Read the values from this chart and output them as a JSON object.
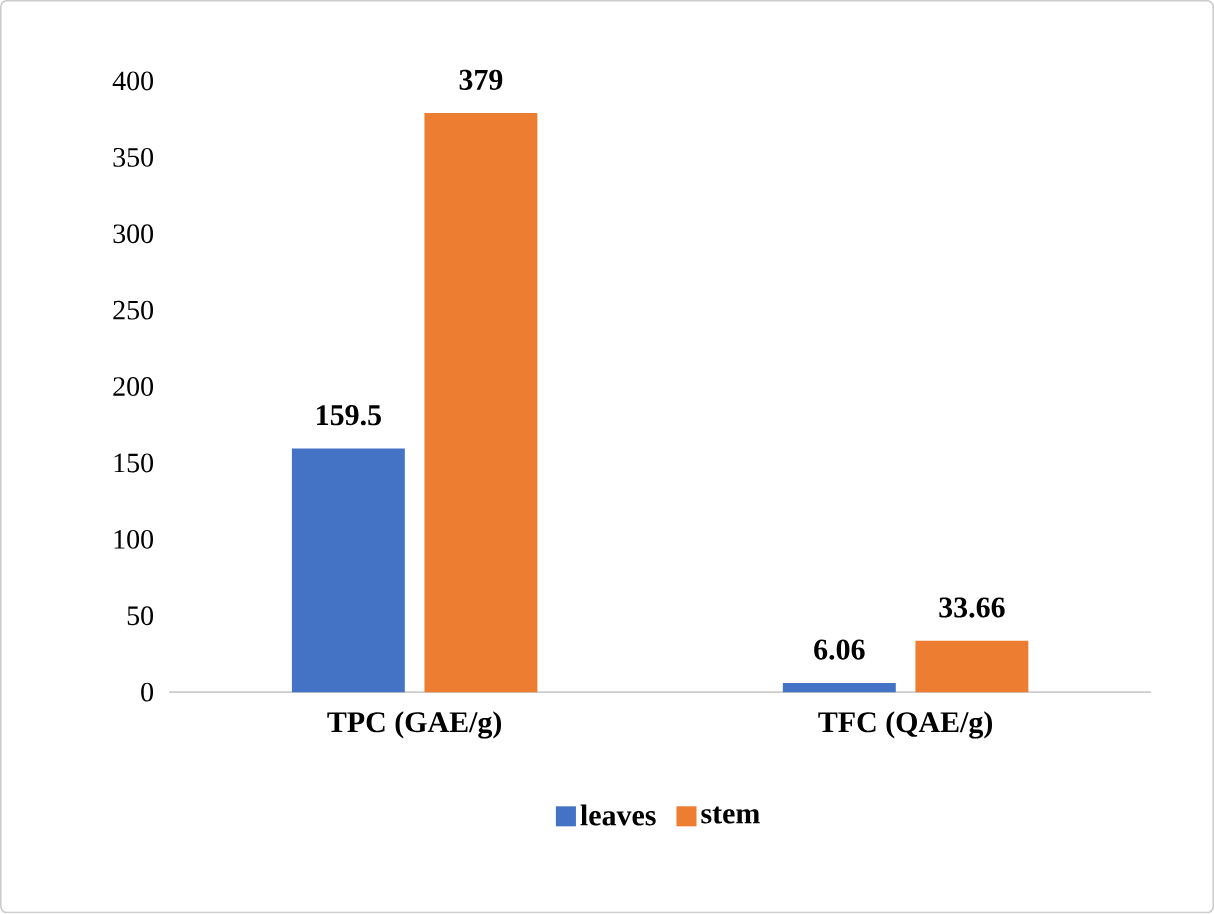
{
  "chart_data": {
    "type": "bar",
    "categories": [
      "TPC (GAE/g)",
      "TFC (QAE/g)"
    ],
    "series": [
      {
        "name": "leaves",
        "color": "#4472c4",
        "values": [
          159.5,
          6.06
        ]
      },
      {
        "name": "stem",
        "color": "#ed7d31",
        "values": [
          379,
          33.66
        ]
      }
    ],
    "ylim": [
      0,
      400
    ],
    "yticks": [
      0,
      50,
      100,
      150,
      200,
      250,
      300,
      350,
      400
    ],
    "data_labels": true,
    "legend": "bottom",
    "grid": false
  }
}
